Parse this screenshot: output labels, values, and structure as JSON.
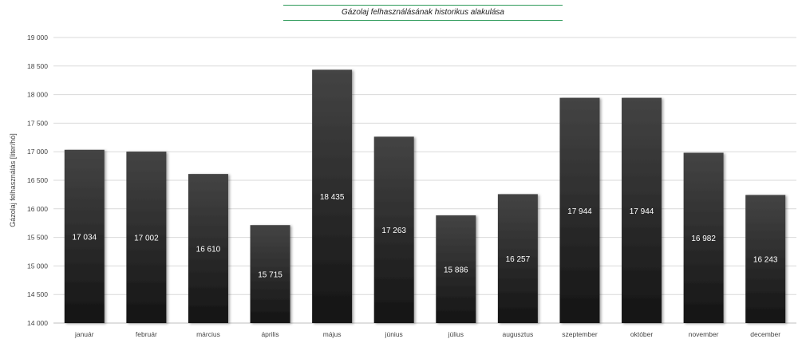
{
  "chart_data": {
    "type": "bar",
    "title": "Gázolaj felhasználásának historikus alakulása",
    "ylabel": "Gázolaj felhasználás [liter/hó]",
    "xlabel": "",
    "categories": [
      "január",
      "február",
      "március",
      "április",
      "május",
      "június",
      "július",
      "augusztus",
      "szeptember",
      "október",
      "november",
      "december"
    ],
    "values": [
      17034,
      17002,
      16610,
      15715,
      18435,
      17263,
      15886,
      16257,
      17944,
      17944,
      16982,
      16243
    ],
    "value_labels": [
      "17 034",
      "17 002",
      "16 610",
      "15 715",
      "18 435",
      "17 263",
      "15 886",
      "16 257",
      "17 944",
      "17 944",
      "16 982",
      "16 243"
    ],
    "ylim": [
      14000,
      19000
    ],
    "yticks": [
      14000,
      14500,
      15000,
      15500,
      16000,
      16500,
      17000,
      17500,
      18000,
      18500,
      19000
    ],
    "ytick_labels": [
      "14 000",
      "14 500",
      "15 000",
      "15 500",
      "16 000",
      "16 500",
      "17 000",
      "17 500",
      "18 000",
      "18 500",
      "19 000"
    ],
    "grid": true,
    "legend": "none",
    "colors": {
      "bar_top": "#3f3f3f",
      "bar_bottom": "#161616",
      "grid": "#d9d9d9",
      "title_rule": "#2e9a5a"
    }
  }
}
